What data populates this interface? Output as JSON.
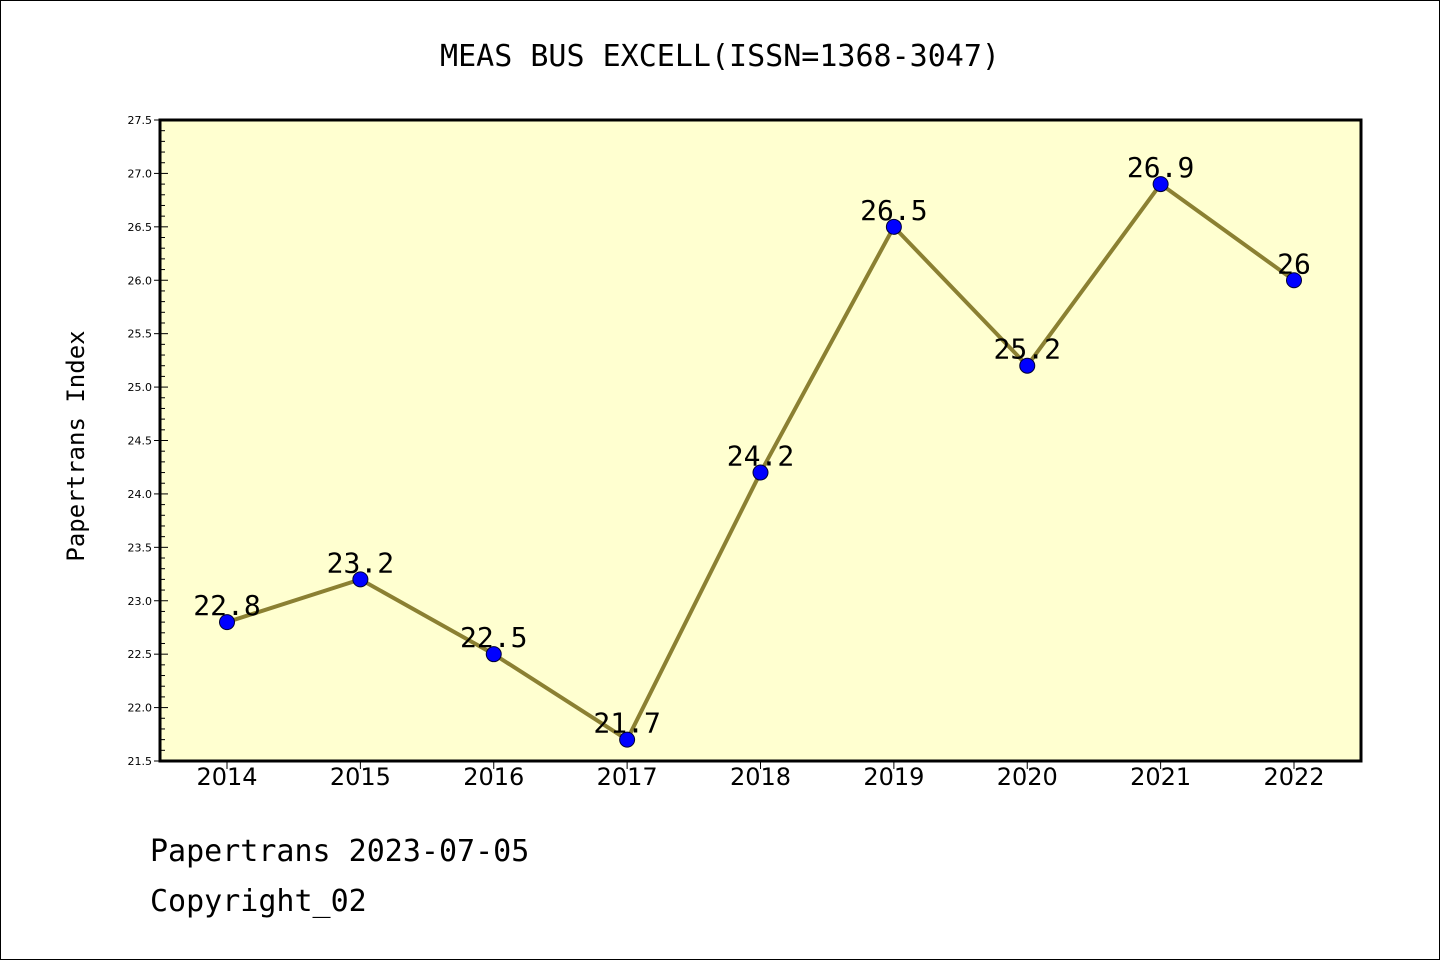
{
  "chart_data": {
    "type": "line",
    "title": "MEAS BUS EXCELL(ISSN=1368-3047)",
    "xlabel": "",
    "ylabel": "Papertrans Index",
    "categories": [
      "2014",
      "2015",
      "2016",
      "2017",
      "2018",
      "2019",
      "2020",
      "2021",
      "2022"
    ],
    "values": [
      22.8,
      23.2,
      22.5,
      21.7,
      24.2,
      26.5,
      25.2,
      26.9,
      26
    ],
    "data_labels": [
      "22.8",
      "23.2",
      "22.5",
      "21.7",
      "24.2",
      "26.5",
      "25.2",
      "26.9",
      "26"
    ],
    "ylim": [
      21.5,
      27.5
    ],
    "yticks": [
      "21.5",
      "22.0",
      "22.5",
      "23.0",
      "23.5",
      "24.0",
      "24.5",
      "25.0",
      "25.5",
      "26.0",
      "26.5",
      "27.0",
      "27.5"
    ],
    "grid": false,
    "legend": "none",
    "colors": {
      "plot_background": "#ffffd0",
      "line": "#8b8032",
      "marker": "#0000ff"
    }
  },
  "footer": {
    "source": "Papertrans 2023-07-05",
    "copyright": "Copyright_02"
  }
}
